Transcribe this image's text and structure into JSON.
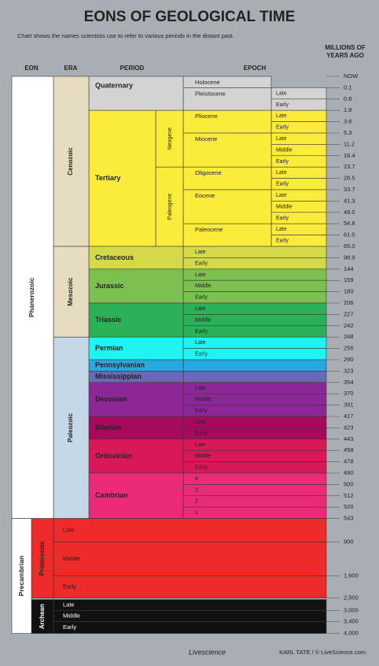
{
  "header": {
    "title": "EONS OF GEOLOGICAL TIME",
    "subtitle": "Chart shows the names scientists use to refer to various periods in the distant past."
  },
  "columns": {
    "eon": "EON",
    "era": "ERA",
    "period": "PERIOD",
    "epoch": "EPOCH",
    "years": "MILLIONS OF YEARS AGO"
  },
  "phanerozoic": {
    "label": "Phanerozoic",
    "eras": [
      {
        "label": "Cenozoic",
        "periods": [
          {
            "label": "Quaternary",
            "epochs": [
              {
                "label": "Holocene"
              },
              {
                "label": "Pleistocene",
                "subs": [
                  "Late",
                  "Early"
                ]
              }
            ]
          },
          {
            "label": "Tertiary",
            "subperiods": [
              {
                "label": "Neogene",
                "epochs": [
                  {
                    "label": "Pliocene",
                    "subs": [
                      "Late",
                      "Early"
                    ]
                  },
                  {
                    "label": "Miocene",
                    "subs": [
                      "Late",
                      "Middle",
                      "Early"
                    ]
                  }
                ]
              },
              {
                "label": "Paleogene",
                "epochs": [
                  {
                    "label": "Oligocene",
                    "subs": [
                      "Late",
                      "Early"
                    ]
                  },
                  {
                    "label": "Eocene",
                    "subs": [
                      "Late",
                      "Middle",
                      "Early"
                    ]
                  },
                  {
                    "label": "Paleocene",
                    "subs": [
                      "Late",
                      "Early"
                    ]
                  }
                ]
              }
            ]
          }
        ]
      },
      {
        "label": "Mesozoic",
        "periods": [
          {
            "label": "Cretaceous",
            "subs": [
              "Late",
              "Early"
            ]
          },
          {
            "label": "Jurassic",
            "subs": [
              "Late",
              "Middle",
              "Early"
            ]
          },
          {
            "label": "Triassic",
            "subs": [
              "Late",
              "Middle",
              "Early"
            ]
          }
        ]
      },
      {
        "label": "Paleozoic",
        "periods": [
          {
            "label": "Permian",
            "subs": [
              "Late",
              "Early"
            ]
          },
          {
            "label": "Pennsylvanian"
          },
          {
            "label": "Mississippian"
          },
          {
            "label": "Devonian",
            "subs": [
              "Late",
              "Middle",
              "Early"
            ]
          },
          {
            "label": "Silurian",
            "subs": [
              "Late",
              "Early"
            ]
          },
          {
            "label": "Ordovician",
            "subs": [
              "Late",
              "Middle",
              "Early"
            ]
          },
          {
            "label": "Cambrian",
            "subs": [
              "4",
              "3",
              "2",
              "1"
            ]
          }
        ]
      }
    ]
  },
  "years": [
    "NOW",
    "0.1",
    "0.8",
    "1.8",
    "3.6",
    "5.3",
    "11.2",
    "16.4",
    "23.7",
    "28.5",
    "33.7",
    "41.3",
    "49.0",
    "54.8",
    "61.0",
    "65.0",
    "98.9",
    "144",
    "159",
    "180",
    "206",
    "227",
    "242",
    "248",
    "256",
    "290",
    "323",
    "354",
    "370",
    "391",
    "417",
    "423",
    "443",
    "458",
    "478",
    "490",
    "500",
    "512",
    "520",
    "543"
  ],
  "precambrian": {
    "label": "Precambrian",
    "eras": [
      {
        "label": "Proterozoic",
        "subs": [
          "Late",
          "Middle",
          "Early"
        ]
      },
      {
        "label": "Archean",
        "subs": [
          "Late",
          "Middle",
          "Early"
        ]
      }
    ]
  },
  "precambrian_years": [
    "900",
    "1,600",
    "2,500",
    "3,000",
    "3,400",
    "4,000"
  ],
  "footer": {
    "logo": "Livescience",
    "credit": "KARL TATE / © LiveScience.com"
  }
}
